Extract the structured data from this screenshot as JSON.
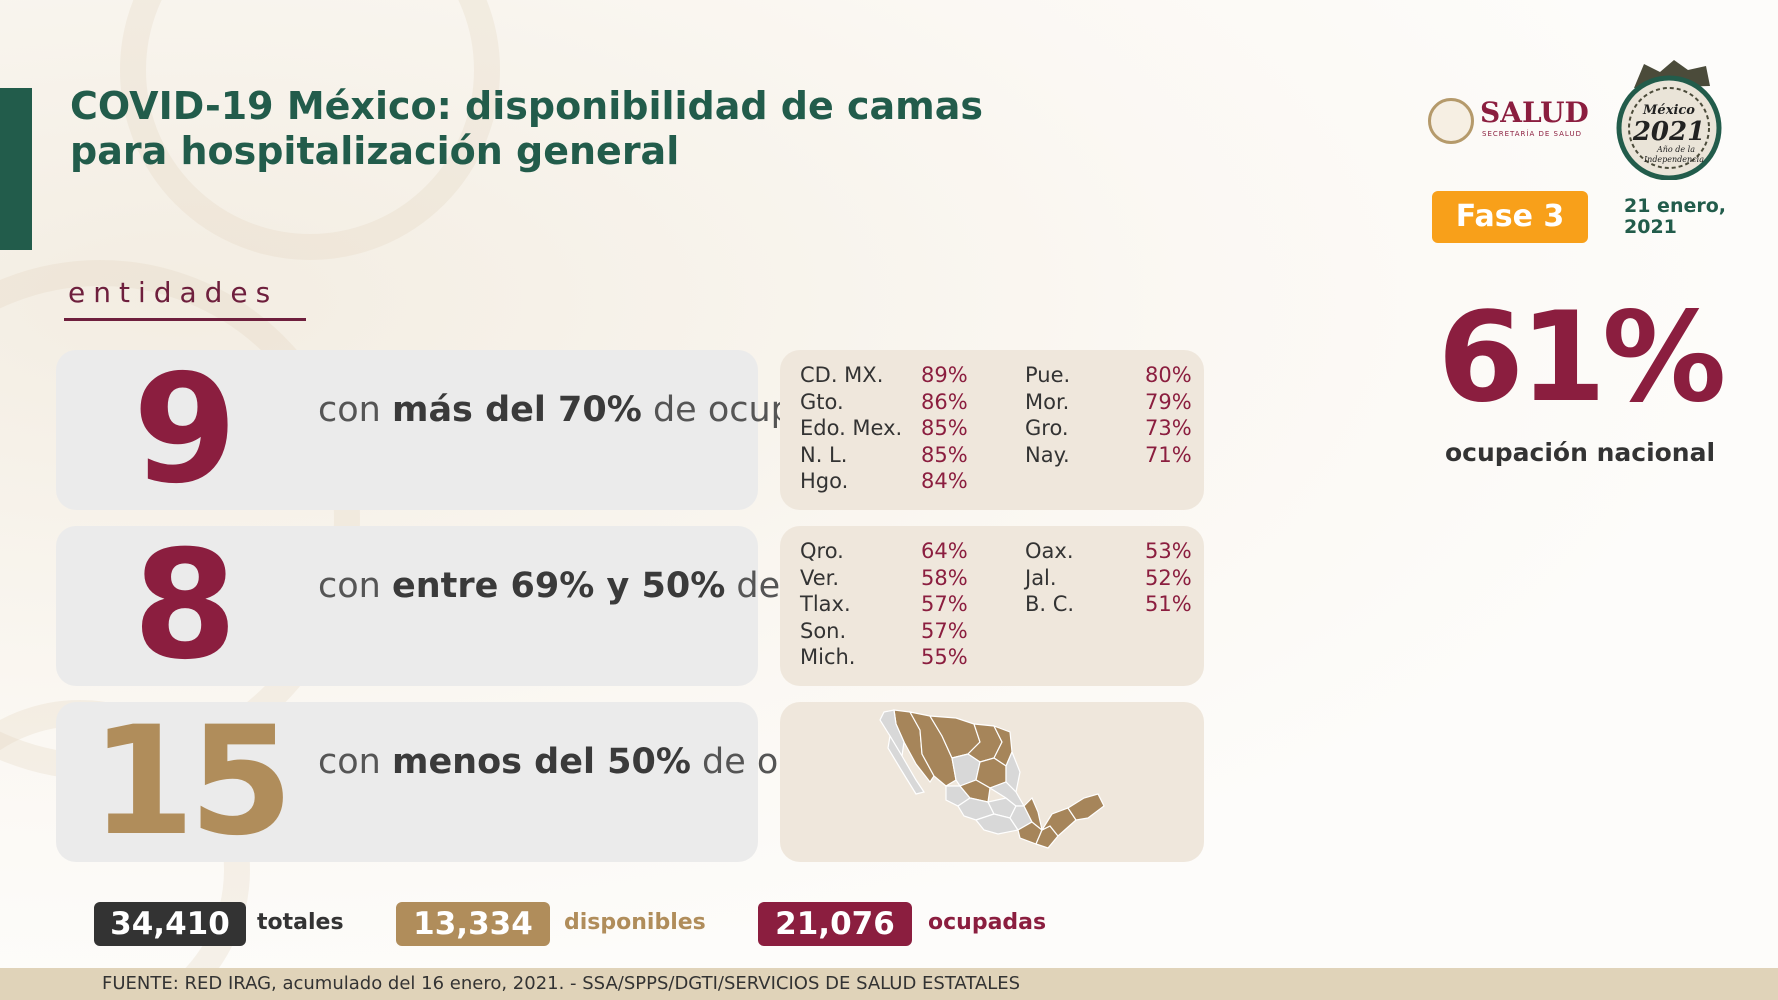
{
  "header": {
    "title": "COVID-19 México: disponibilidad de camas para hospitalización general",
    "section_label": "entidades"
  },
  "brand": {
    "salud_word": "SALUD",
    "salud_sub": "SECRETARÍA DE SALUD",
    "emblem_line1": "México",
    "emblem_year": "2021",
    "emblem_line3": "Año de la",
    "emblem_line4": "Independencia"
  },
  "status": {
    "phase": "Fase 3",
    "date": "21 enero, 2021"
  },
  "national": {
    "value": "61%",
    "label": "ocupación nacional"
  },
  "tiers": [
    {
      "count": "9",
      "pre": "con ",
      "bold": "más del 70%",
      "post": " de ocupación",
      "color": "#8b1e3f",
      "left_states": [
        {
          "name": "CD. MX.",
          "pct": "89%"
        },
        {
          "name": "Gto.",
          "pct": "86%"
        },
        {
          "name": "Edo. Mex.",
          "pct": "85%"
        },
        {
          "name": "N. L.",
          "pct": "85%"
        },
        {
          "name": "Hgo.",
          "pct": "84%"
        }
      ],
      "right_states": [
        {
          "name": "Pue.",
          "pct": "80%"
        },
        {
          "name": "Mor.",
          "pct": "79%"
        },
        {
          "name": "Gro.",
          "pct": "73%"
        },
        {
          "name": "Nay.",
          "pct": "71%"
        }
      ]
    },
    {
      "count": "8",
      "pre": "con ",
      "bold": "entre 69% y 50%",
      "post": " de ocupación",
      "color": "#8b1e3f",
      "left_states": [
        {
          "name": "Qro.",
          "pct": "64%"
        },
        {
          "name": "Ver.",
          "pct": "58%"
        },
        {
          "name": "Tlax.",
          "pct": "57%"
        },
        {
          "name": "Son.",
          "pct": "57%"
        },
        {
          "name": "Mich.",
          "pct": "55%"
        }
      ],
      "right_states": [
        {
          "name": "Oax.",
          "pct": "53%"
        },
        {
          "name": "Jal.",
          "pct": "52%"
        },
        {
          "name": "B. C.",
          "pct": "51%"
        }
      ]
    },
    {
      "count": "15",
      "pre": "con ",
      "bold": "menos del 50%",
      "post": " de ocupación",
      "color": "#b08d5b"
    }
  ],
  "map": {
    "highlight_color": "#a6855a",
    "base_color": "#d8d8d8"
  },
  "totals": [
    {
      "value": "34,410",
      "label": "totales",
      "color": "#333333"
    },
    {
      "value": "13,334",
      "label": "disponibles",
      "color": "#b08d5b"
    },
    {
      "value": "21,076",
      "label": "ocupadas",
      "color": "#8b1e3f"
    }
  ],
  "footer": {
    "source": "FUENTE: RED IRAG, acumulado del 16 enero, 2021. -  SSA/SPPS/DGTI/SERVICIOS DE SALUD ESTATALES"
  }
}
